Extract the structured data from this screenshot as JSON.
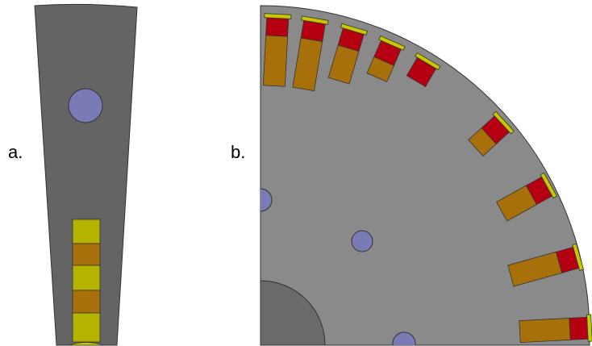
{
  "labels": {
    "a": "a.",
    "b": "b."
  },
  "colors": {
    "background": "#ffffff",
    "tooth_gray": "#646464",
    "rotor_gray": "#8a8a8a",
    "shaft_gray": "#6a6a6a",
    "outline": "#333333",
    "hole_blue": "#7a7ab4",
    "winding_yellow": "#b4b400",
    "winding_orange": "#a8700a",
    "winding_red": "#b40010",
    "wedge_yellow": "#c8c800"
  }
}
